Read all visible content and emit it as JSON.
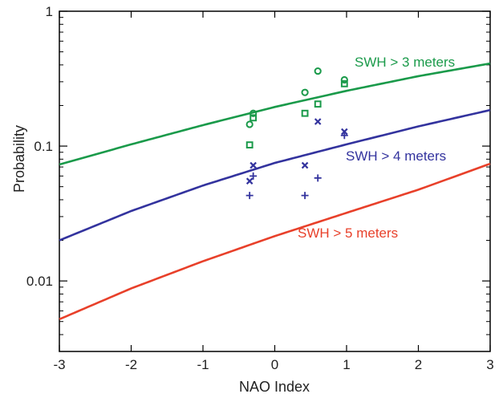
{
  "chart_data": {
    "type": "scatter",
    "xlabel": "NAO Index",
    "ylabel": "Probability",
    "xlim": [
      -3,
      3
    ],
    "ylim": [
      0.003,
      1
    ],
    "yscale": "log",
    "grid": false,
    "x_ticks": [
      -3,
      -2,
      -1,
      0,
      1,
      2,
      3
    ],
    "x_tick_labels": [
      "-3",
      "-2",
      "-1",
      "0",
      "1",
      "2",
      "3"
    ],
    "y_ticks": [
      0.01,
      0.1,
      1
    ],
    "y_tick_labels": [
      "0.01",
      "0.1",
      "1"
    ],
    "series": [
      {
        "name": "SWH > 3 meters",
        "color": "#1a9a4a",
        "curve": {
          "x": [
            -3,
            -2,
            -1,
            0,
            1,
            2,
            3
          ],
          "y": [
            0.073,
            0.103,
            0.143,
            0.195,
            0.257,
            0.33,
            0.41
          ]
        },
        "points": [
          {
            "x": -0.35,
            "y": 0.145,
            "marker": "circle"
          },
          {
            "x": -0.3,
            "y": 0.175,
            "marker": "circle"
          },
          {
            "x": 0.42,
            "y": 0.25,
            "marker": "circle"
          },
          {
            "x": 0.6,
            "y": 0.36,
            "marker": "circle"
          },
          {
            "x": 0.97,
            "y": 0.31,
            "marker": "circle"
          },
          {
            "x": -0.35,
            "y": 0.102,
            "marker": "square"
          },
          {
            "x": -0.3,
            "y": 0.162,
            "marker": "square"
          },
          {
            "x": 0.42,
            "y": 0.175,
            "marker": "square"
          },
          {
            "x": 0.6,
            "y": 0.205,
            "marker": "square"
          },
          {
            "x": 0.97,
            "y": 0.29,
            "marker": "square"
          }
        ]
      },
      {
        "name": "SWH > 4 meters",
        "color": "#33339e",
        "curve": {
          "x": [
            -3,
            -2,
            -1,
            0,
            1,
            2,
            3
          ],
          "y": [
            0.02,
            0.033,
            0.051,
            0.075,
            0.103,
            0.14,
            0.185
          ]
        },
        "points": [
          {
            "x": -0.3,
            "y": 0.072,
            "marker": "x"
          },
          {
            "x": -0.35,
            "y": 0.055,
            "marker": "x"
          },
          {
            "x": 0.42,
            "y": 0.072,
            "marker": "x"
          },
          {
            "x": 0.6,
            "y": 0.152,
            "marker": "x"
          },
          {
            "x": 0.97,
            "y": 0.128,
            "marker": "x"
          },
          {
            "x": -0.35,
            "y": 0.043,
            "marker": "plus"
          },
          {
            "x": -0.3,
            "y": 0.06,
            "marker": "plus"
          },
          {
            "x": 0.42,
            "y": 0.043,
            "marker": "plus"
          },
          {
            "x": 0.6,
            "y": 0.058,
            "marker": "plus"
          },
          {
            "x": 0.97,
            "y": 0.12,
            "marker": "plus"
          }
        ]
      },
      {
        "name": "SWH > 5 meters",
        "color": "#e8402a",
        "curve": {
          "x": [
            -3,
            -2,
            -1,
            0,
            1,
            2,
            3
          ],
          "y": [
            0.0052,
            0.0088,
            0.014,
            0.0215,
            0.032,
            0.0475,
            0.074
          ]
        },
        "points": []
      }
    ]
  }
}
